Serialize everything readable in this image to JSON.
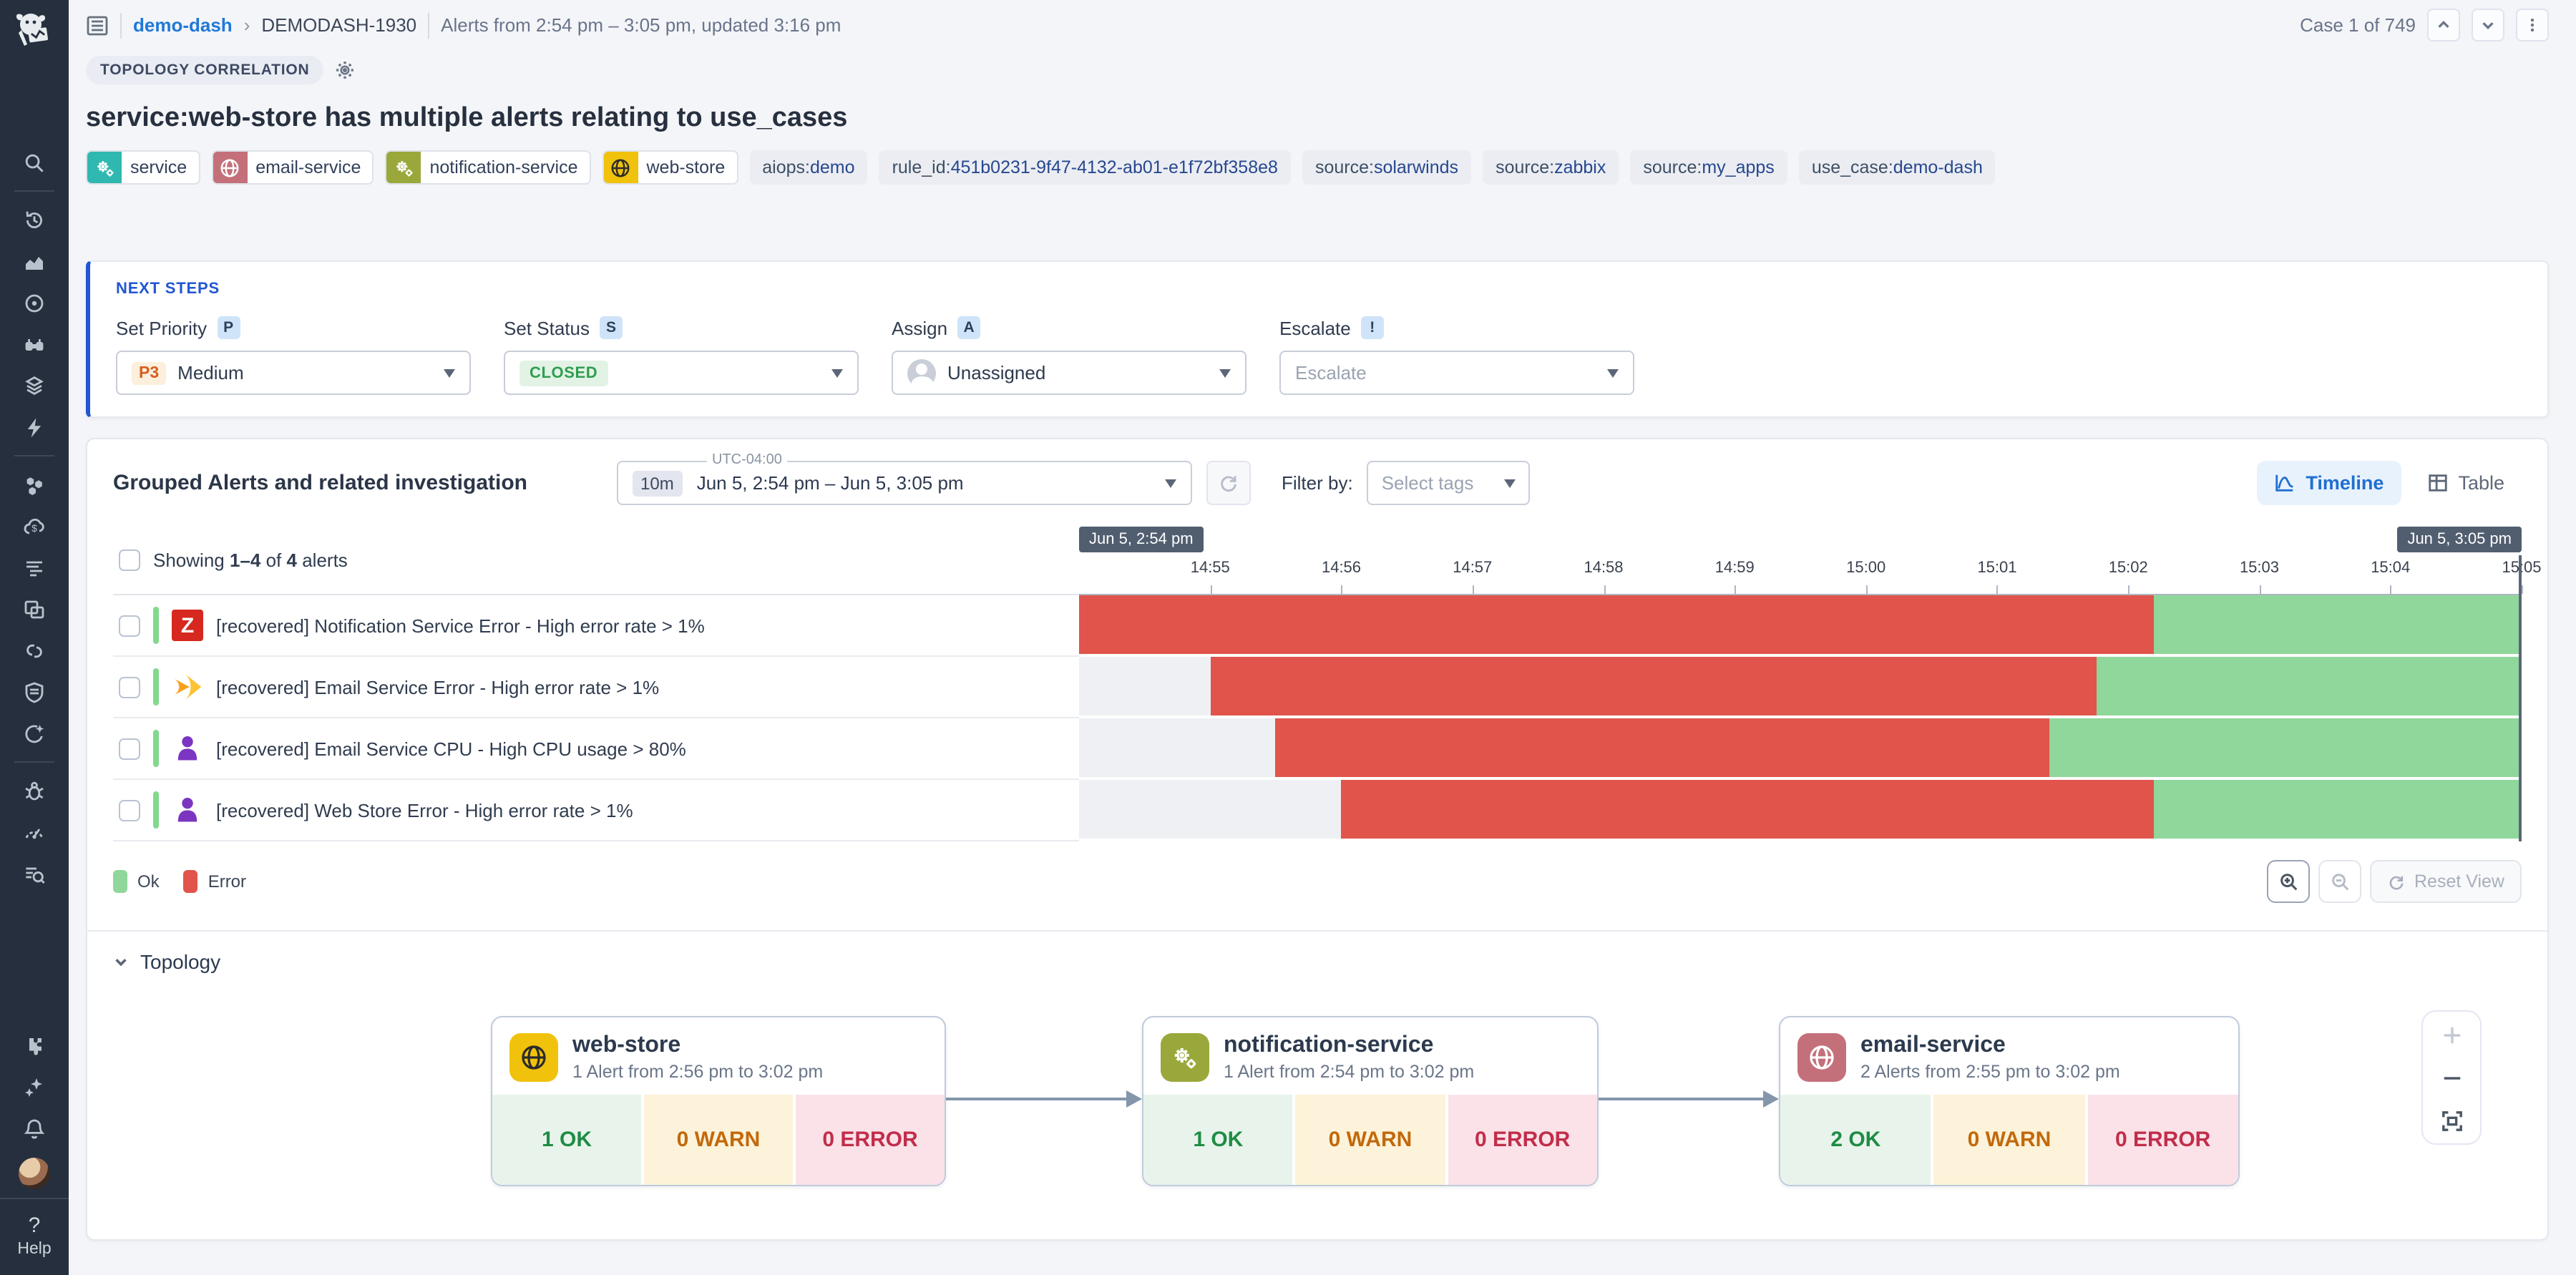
{
  "header": {
    "breadcrumb": {
      "parent": "demo-dash",
      "current": "DEMODASH-1930"
    },
    "alerts_summary": "Alerts from 2:54 pm – 3:05 pm, updated 3:16 pm",
    "case_label": "Case 1 of 749"
  },
  "correlation_badge": "TOPOLOGY CORRELATION",
  "title": "service:web-store has multiple alerts relating to use_cases",
  "tags": [
    {
      "label": "service",
      "icon": "gears",
      "color": "#2fb8b0"
    },
    {
      "label": "email-service",
      "icon": "globe",
      "color": "#c4707a"
    },
    {
      "label": "notification-service",
      "icon": "gears",
      "color": "#9aa83b"
    },
    {
      "label": "web-store",
      "icon": "globe",
      "color": "#f0c20c",
      "glyph_dark": true
    },
    {
      "key": "aiops",
      "value": "demo"
    },
    {
      "key": "rule_id",
      "value": "451b0231-9f47-4132-ab01-e1f72bf358e8"
    },
    {
      "key": "source",
      "value": "solarwinds"
    },
    {
      "key": "source",
      "value": "zabbix"
    },
    {
      "key": "source",
      "value": "my_apps"
    },
    {
      "key": "use_case",
      "value": "demo-dash"
    }
  ],
  "next_steps": {
    "heading": "NEXT STEPS",
    "priority": {
      "label": "Set Priority",
      "key": "P",
      "badge": "P3",
      "value": "Medium"
    },
    "status": {
      "label": "Set Status",
      "key": "S",
      "value": "CLOSED"
    },
    "assign": {
      "label": "Assign",
      "key": "A",
      "value": "Unassigned"
    },
    "escalate": {
      "label": "Escalate",
      "key": "!",
      "placeholder": "Escalate"
    }
  },
  "grouped": {
    "title": "Grouped Alerts and related investigation",
    "timezone": "UTC-04:00",
    "duration": "10m",
    "range": "Jun 5, 2:54 pm – Jun 5, 3:05 pm",
    "filter_label": "Filter by:",
    "filter_placeholder": "Select tags",
    "view_timeline": "Timeline",
    "view_table": "Table"
  },
  "alerts": {
    "showing": {
      "prefix": "Showing ",
      "range": "1–4",
      "middle": " of ",
      "total": "4",
      "suffix": " alerts"
    },
    "rows": [
      {
        "source": "zabbix",
        "label": "[recovered] Notification Service Error - High error rate > 1%",
        "segments": [
          {
            "status": "error",
            "start_pct": 0,
            "end_pct": 74.5
          },
          {
            "status": "ok",
            "start_pct": 74.5,
            "end_pct": 100
          }
        ]
      },
      {
        "source": "solarwinds",
        "label": "[recovered] Email Service Error - High error rate > 1%",
        "segments": [
          {
            "status": "error",
            "start_pct": 9.1,
            "end_pct": 70.5
          },
          {
            "status": "ok",
            "start_pct": 70.5,
            "end_pct": 100
          }
        ]
      },
      {
        "source": "user",
        "label": "[recovered] Email Service CPU - High CPU usage > 80%",
        "segments": [
          {
            "status": "error",
            "start_pct": 13.6,
            "end_pct": 67.3
          },
          {
            "status": "ok",
            "start_pct": 67.3,
            "end_pct": 100
          }
        ]
      },
      {
        "source": "user",
        "label": "[recovered] Web Store Error - High error rate > 1%",
        "segments": [
          {
            "status": "error",
            "start_pct": 18.2,
            "end_pct": 74.5
          },
          {
            "status": "ok",
            "start_pct": 74.5,
            "end_pct": 100
          }
        ]
      }
    ]
  },
  "timeline": {
    "start_badge": "Jun 5, 2:54 pm",
    "end_badge": "Jun 5, 3:05 pm",
    "ticks": [
      {
        "label": "14:55",
        "pct": 9.09
      },
      {
        "label": "14:56",
        "pct": 18.18
      },
      {
        "label": "14:57",
        "pct": 27.27
      },
      {
        "label": "14:58",
        "pct": 36.36
      },
      {
        "label": "14:59",
        "pct": 45.45
      },
      {
        "label": "15:00",
        "pct": 54.55
      },
      {
        "label": "15:01",
        "pct": 63.64
      },
      {
        "label": "15:02",
        "pct": 72.73
      },
      {
        "label": "15:03",
        "pct": 81.82
      },
      {
        "label": "15:04",
        "pct": 90.91
      },
      {
        "label": "15:05",
        "pct": 100
      }
    ]
  },
  "legend": {
    "ok": "Ok",
    "error": "Error"
  },
  "controls": {
    "reset_label": "Reset View"
  },
  "topology": {
    "title": "Topology",
    "nodes": [
      {
        "name": "web-store",
        "subtitle": "1 Alert from 2:56 pm to 3:02 pm",
        "ok": "1 OK",
        "warn": "0 WARN",
        "error": "0 ERROR",
        "icon": "globe",
        "color": "#f0c20c",
        "glyph_dark": true
      },
      {
        "name": "notification-service",
        "subtitle": "1 Alert from 2:54 pm to 3:02 pm",
        "ok": "1 OK",
        "warn": "0 WARN",
        "error": "0 ERROR",
        "icon": "gears",
        "color": "#9aa83b"
      },
      {
        "name": "email-service",
        "subtitle": "2 Alerts from 2:55 pm to 3:02 pm",
        "ok": "2 OK",
        "warn": "0 WARN",
        "error": "0 ERROR",
        "icon": "globe",
        "color": "#c4707a"
      }
    ]
  },
  "sidebar": {
    "help": "Help",
    "items": [
      "search",
      "divider",
      "history",
      "metrics",
      "apm",
      "watchdog",
      "dashboards",
      "events",
      "divider",
      "infrastructure",
      "cloud-cost",
      "logs",
      "rum",
      "ci-cd",
      "security",
      "ai-assistant",
      "divider",
      "error-tracking",
      "quality-gauge",
      "audit-trail",
      "spacer",
      "integrations",
      "bits-ai",
      "notifications",
      "avatar"
    ]
  },
  "colors": {
    "ok": "#8fd79a",
    "error": "#e0544b",
    "empty": "#eef0f4",
    "accent_blue": "#2156d4",
    "badge_bg": "#515e70",
    "link_blue": "#1f79d8"
  }
}
